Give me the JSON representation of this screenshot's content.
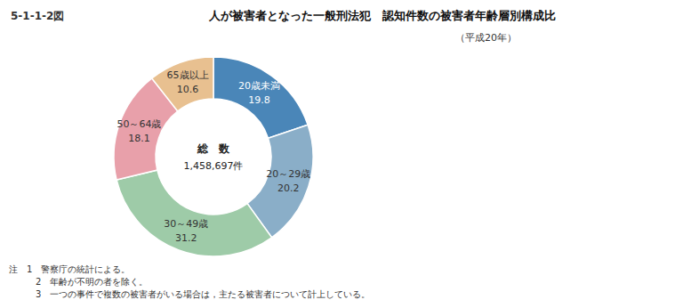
{
  "chart_data": {
    "type": "pie",
    "figure_label": "5-1-1-2図",
    "title": "人が被害者となった一般刑法犯　認知件数の被害者年齢層別構成比",
    "subtitle": "（平成20年）",
    "categories": [
      "20歳未満",
      "20～29歳",
      "30～49歳",
      "50～64歳",
      "65歳以上"
    ],
    "values": [
      19.8,
      20.2,
      31.2,
      18.1,
      10.6
    ],
    "colors": [
      "#4a86b8",
      "#8aaec8",
      "#9ecba8",
      "#e8a0aa",
      "#e8c090"
    ],
    "data_labels": true,
    "annotations": [
      "総　数",
      "1,458,697件"
    ],
    "notes": [
      "注　1　警察庁の統計による。",
      "　2　年齢が不明の者を除く。",
      "　3　一つの事件で複数の被害者がいる場合は，主たる被害者について計上している。"
    ]
  }
}
